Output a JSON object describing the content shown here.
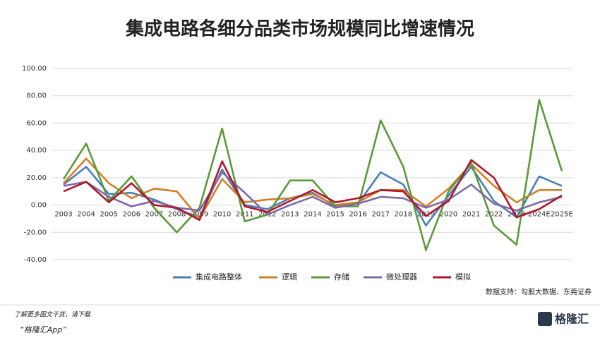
{
  "chart_data": {
    "type": "line",
    "title": "集成电路各细分品类市场规模同比增速情况",
    "categories": [
      "2003",
      "2004",
      "2005",
      "2006",
      "2007",
      "2008",
      "2009",
      "2010",
      "2011",
      "2012",
      "2013",
      "2014",
      "2015",
      "2016",
      "2017",
      "2018",
      "2019",
      "2020",
      "2021",
      "2022",
      "2023",
      "2024E",
      "2025E"
    ],
    "series": [
      {
        "name": "集成电路整体",
        "color": "#4a7ebb",
        "values": [
          15,
          28,
          8,
          9,
          4,
          -3,
          -9,
          26,
          0,
          -3,
          5,
          9,
          -1,
          1,
          24,
          15,
          -15,
          7,
          28,
          3,
          -9,
          21,
          14
        ]
      },
      {
        "name": "逻辑",
        "color": "#d47f28",
        "values": [
          16,
          34,
          16,
          5,
          12,
          10,
          -10,
          19,
          2,
          4,
          5,
          8,
          0,
          2,
          11,
          11,
          -1,
          12,
          30,
          14,
          2,
          11,
          11
        ]
      },
      {
        "name": "存储",
        "color": "#5a9a3a",
        "values": [
          19,
          45,
          3,
          21,
          -2,
          -20,
          -2,
          56,
          -12,
          -7,
          18,
          18,
          -1,
          -1,
          62,
          28,
          -33,
          10,
          31,
          -15,
          -29,
          77,
          25
        ]
      },
      {
        "name": "微处理器",
        "color": "#7d6aa8",
        "values": [
          14,
          17,
          6,
          -1,
          3,
          -2,
          -4,
          24,
          9,
          -7,
          0,
          6,
          -2,
          1,
          6,
          5,
          -2,
          4,
          15,
          1,
          -4,
          2,
          6
        ]
      },
      {
        "name": "模拟",
        "color": "#b0182a",
        "values": [
          10,
          17,
          2,
          16,
          0,
          -2,
          -11,
          32,
          -1,
          -5,
          3,
          11,
          2,
          5,
          11,
          10,
          -8,
          3,
          33,
          20,
          -9,
          -3,
          7
        ]
      }
    ],
    "ylim": [
      -40,
      100
    ],
    "yticks": [
      {
        "value": -40,
        "label": "-40.00"
      },
      {
        "value": -20,
        "label": "-20.00"
      },
      {
        "value": 0,
        "label": "0.00"
      },
      {
        "value": 20,
        "label": "20.00"
      },
      {
        "value": 40,
        "label": "40.00"
      },
      {
        "value": 60,
        "label": "60.00"
      },
      {
        "value": 80,
        "label": "80.00"
      },
      {
        "value": 100,
        "label": "100.00"
      }
    ],
    "grid": true,
    "source": "数据支持：勾股大数据、东莞证券"
  },
  "footer": {
    "prompt": "了解更多图文干货，请下载",
    "app": "“格隆汇App”",
    "logo": "格隆汇"
  }
}
